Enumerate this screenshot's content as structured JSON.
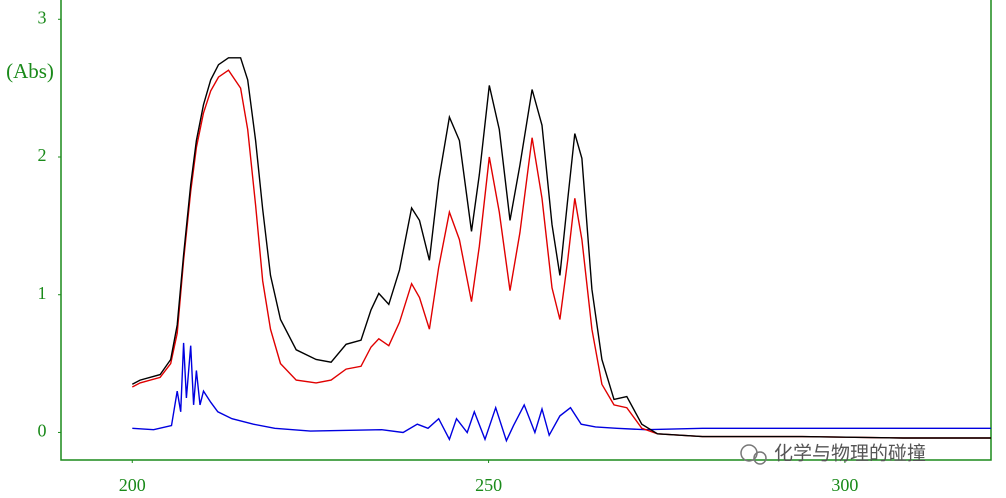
{
  "chart_data": {
    "type": "line",
    "y_label": "(Abs)",
    "watermark": "化学与物理的碰撞",
    "xlim": [
      190,
      320.5
    ],
    "xticks": [
      200,
      250,
      300
    ],
    "ylim": [
      -0.2,
      3.14
    ],
    "yticks": [
      0,
      1,
      2,
      3
    ],
    "axis_color": "#1a8a1a",
    "series": [
      {
        "color": "#000000",
        "x": [
          200,
          201.1,
          203.9,
          205.4,
          206.3,
          207.2,
          208.2,
          209,
          210,
          211,
          212.1,
          213.5,
          215.2,
          216.2,
          217.3,
          218.3,
          219.4,
          220.8,
          223,
          225.8,
          227.9,
          230,
          232.1,
          233.5,
          234.6,
          236,
          237.5,
          239.2,
          240.3,
          241.7,
          243,
          244.5,
          245.9,
          247.6,
          248.7,
          250.1,
          251.5,
          253,
          254.4,
          256.1,
          257.5,
          258.9,
          260,
          261.1,
          262.1,
          263.1,
          264.5,
          265.9,
          267.6,
          269.4,
          271.5,
          273.7,
          280,
          294,
          308.2,
          320.5
        ],
        "values": [
          0.35,
          0.38,
          0.42,
          0.53,
          0.78,
          1.29,
          1.8,
          2.12,
          2.38,
          2.56,
          2.67,
          2.72,
          2.72,
          2.56,
          2.12,
          1.62,
          1.14,
          0.82,
          0.6,
          0.53,
          0.51,
          0.64,
          0.67,
          0.89,
          1.01,
          0.93,
          1.18,
          1.63,
          1.54,
          1.25,
          1.83,
          2.29,
          2.12,
          1.46,
          1.87,
          2.52,
          2.2,
          1.54,
          1.94,
          2.49,
          2.23,
          1.51,
          1.14,
          1.69,
          2.17,
          1.99,
          1.04,
          0.53,
          0.24,
          0.26,
          0.06,
          -0.01,
          -0.03,
          -0.03,
          -0.04,
          -0.04
        ]
      },
      {
        "color": "#e00000",
        "x": [
          200,
          201.1,
          203.9,
          205.4,
          206.3,
          207.2,
          208.2,
          209,
          210,
          211,
          212.1,
          213.5,
          215.2,
          216.2,
          217.3,
          218.3,
          219.4,
          220.8,
          223,
          225.8,
          227.9,
          230,
          232.1,
          233.5,
          234.6,
          236,
          237.5,
          239.2,
          240.3,
          241.7,
          243,
          244.5,
          245.9,
          247.6,
          248.7,
          250.1,
          251.5,
          253,
          254.4,
          256.1,
          257.5,
          258.9,
          260,
          261.1,
          262.1,
          263.1,
          264.5,
          265.9,
          267.6,
          269.4,
          271.5,
          273.7,
          280,
          294,
          308.2,
          320.5
        ],
        "values": [
          0.33,
          0.36,
          0.4,
          0.5,
          0.72,
          1.25,
          1.75,
          2.07,
          2.32,
          2.48,
          2.58,
          2.63,
          2.5,
          2.2,
          1.65,
          1.1,
          0.75,
          0.5,
          0.38,
          0.36,
          0.38,
          0.46,
          0.48,
          0.62,
          0.68,
          0.63,
          0.8,
          1.08,
          0.98,
          0.75,
          1.2,
          1.6,
          1.4,
          0.95,
          1.35,
          2.0,
          1.6,
          1.03,
          1.45,
          2.14,
          1.7,
          1.05,
          0.82,
          1.25,
          1.7,
          1.4,
          0.75,
          0.35,
          0.2,
          0.18,
          0.03,
          -0.01,
          -0.03,
          -0.03,
          -0.04,
          -0.04
        ]
      },
      {
        "color": "#0000e0",
        "x": [
          200,
          203,
          205.5,
          206.3,
          206.8,
          207.2,
          207.6,
          208.2,
          208.6,
          209,
          209.5,
          210,
          211,
          212,
          214,
          217,
          220,
          225,
          235,
          238,
          240,
          241.5,
          243,
          244.5,
          245.5,
          247,
          248,
          249.5,
          251,
          252.5,
          253.5,
          255,
          256.5,
          257.5,
          258.5,
          260,
          261.5,
          263,
          265,
          268,
          272,
          280,
          320.5
        ],
        "values": [
          0.03,
          0.02,
          0.05,
          0.3,
          0.15,
          0.65,
          0.25,
          0.63,
          0.2,
          0.45,
          0.2,
          0.3,
          0.22,
          0.15,
          0.1,
          0.06,
          0.03,
          0.01,
          0.02,
          0.0,
          0.06,
          0.03,
          0.1,
          -0.05,
          0.1,
          0.0,
          0.15,
          -0.05,
          0.18,
          -0.06,
          0.05,
          0.2,
          0.0,
          0.17,
          -0.02,
          0.12,
          0.18,
          0.06,
          0.04,
          0.03,
          0.02,
          0.03,
          0.03
        ]
      }
    ]
  }
}
